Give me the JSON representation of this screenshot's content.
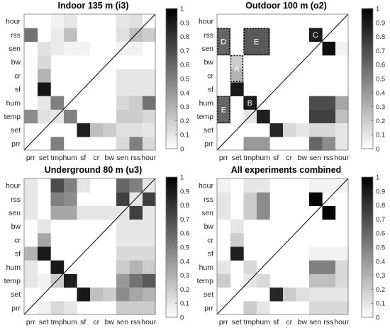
{
  "chart_data": [
    {
      "type": "heatmap",
      "title": "Indoor 135 m (i3)",
      "rows": [
        "hour",
        "rss",
        "sen",
        "bw",
        "cr",
        "sf",
        "hum",
        "temp",
        "set",
        "prr"
      ],
      "cols": [
        "prr",
        "set",
        "tmp",
        "hum",
        "sf",
        "cr",
        "bw",
        "sen",
        "rss",
        "hour"
      ],
      "clim": [
        0,
        1
      ],
      "colorbar_ticks": [
        "0",
        "0.1",
        "0.2",
        "0.3",
        "0.4",
        "0.5",
        "0.6",
        "0.7",
        "0.8",
        "0.9",
        "1"
      ],
      "colormap": [
        "#ffffff",
        "#000000"
      ],
      "values": [
        [
          0,
          0,
          0.05,
          0.1,
          0,
          0,
          0,
          0.1,
          0.12,
          0
        ],
        [
          0.55,
          0,
          0.08,
          0.25,
          0,
          0,
          0,
          0.12,
          0.25,
          0.2
        ],
        [
          0,
          0.12,
          0.08,
          0.05,
          0.05,
          0,
          0,
          0.05,
          0.05,
          0
        ],
        [
          0,
          0.15,
          0,
          0,
          0,
          0,
          0,
          0,
          0,
          0
        ],
        [
          0,
          0.3,
          0,
          0,
          0,
          0,
          0,
          0.1,
          0.1,
          0.1
        ],
        [
          0,
          0.92,
          0,
          0,
          0,
          0,
          0,
          0.1,
          0.1,
          0.1
        ],
        [
          0,
          0.1,
          0.5,
          0,
          0,
          0,
          0,
          0.15,
          0.2,
          0.55
        ],
        [
          0.45,
          0.12,
          0.1,
          0.5,
          0,
          0,
          0,
          0.2,
          0.2,
          0.15
        ],
        [
          0,
          0,
          0,
          0,
          0.88,
          0.25,
          0.2,
          0.12,
          0.12,
          0.1
        ],
        [
          0,
          0,
          0.5,
          0,
          0,
          0,
          0,
          0.15,
          0.5,
          0.15
        ]
      ],
      "diagonal_line": true
    },
    {
      "type": "heatmap",
      "title": "Outdoor 100 m (o2)",
      "rows": [
        "hour",
        "rss",
        "sen",
        "bw",
        "cr",
        "sf",
        "hum",
        "temp",
        "set",
        "prr"
      ],
      "cols": [
        "prr",
        "set",
        "tmp",
        "hum",
        "sf",
        "cr",
        "bw",
        "sen",
        "rss",
        "hour"
      ],
      "clim": [
        0,
        1
      ],
      "colorbar_ticks": [
        "0",
        "0.1",
        "0.2",
        "0.3",
        "0.4",
        "0.5",
        "0.6",
        "0.7",
        "0.8",
        "0.9",
        "1"
      ],
      "colormap": [
        "#ffffff",
        "#000000"
      ],
      "values": [
        [
          0,
          0,
          0,
          0,
          0,
          0,
          0,
          0,
          0,
          0
        ],
        [
          0.6,
          0,
          0.65,
          0.65,
          0,
          0,
          0,
          0.88,
          0,
          0
        ],
        [
          0.6,
          0,
          0.65,
          0.65,
          0,
          0,
          0,
          0,
          0.95,
          0.05
        ],
        [
          0,
          0.2,
          0,
          0,
          0,
          0,
          0,
          0,
          0,
          0
        ],
        [
          0,
          0.3,
          0,
          0,
          0,
          0,
          0,
          0,
          0,
          0
        ],
        [
          0,
          0.9,
          0,
          0,
          0,
          0,
          0,
          0,
          0,
          0
        ],
        [
          0.6,
          0,
          0.88,
          0,
          0,
          0,
          0,
          0.7,
          0.7,
          0.35
        ],
        [
          0.6,
          0,
          0.1,
          0.88,
          0,
          0,
          0,
          0.75,
          0.75,
          0.25
        ],
        [
          0,
          0,
          0,
          0,
          0.85,
          0.15,
          0.1,
          0.15,
          0.15,
          0.1
        ],
        [
          0,
          0,
          0.4,
          0.4,
          0,
          0,
          0,
          0.6,
          0.45,
          0.1
        ]
      ],
      "annotations": [
        "D",
        "E",
        "C",
        "A",
        "E",
        "B"
      ],
      "diagonal_line": true
    },
    {
      "type": "heatmap",
      "title": "Underground 80 m (u3)",
      "rows": [
        "hour",
        "rss",
        "sen",
        "bw",
        "cr",
        "sf",
        "hum",
        "temp",
        "set",
        "prr"
      ],
      "cols": [
        "prr",
        "set",
        "tmp",
        "hum",
        "sf",
        "cr",
        "bw",
        "sen",
        "rss",
        "hour"
      ],
      "clim": [
        0,
        1
      ],
      "colorbar_ticks": [
        "0",
        "0.1",
        "0.2",
        "0.3",
        "0.4",
        "0.5",
        "0.6",
        "0.7",
        "0.8",
        "0.9",
        "1"
      ],
      "colormap": [
        "#ffffff",
        "#000000"
      ],
      "values": [
        [
          0.1,
          0,
          0.7,
          0.5,
          0.1,
          0,
          0,
          0.6,
          0.5,
          0.1
        ],
        [
          0.1,
          0,
          0.5,
          0.45,
          0,
          0,
          0,
          0.75,
          0.1,
          0.75
        ],
        [
          0.1,
          0,
          0.35,
          0.35,
          0.1,
          0.1,
          0.1,
          0.1,
          0.75,
          0.1
        ],
        [
          0,
          0.1,
          0,
          0,
          0,
          0,
          0,
          0.1,
          0.1,
          0.1
        ],
        [
          0,
          0.35,
          0,
          0,
          0,
          0,
          0,
          0.1,
          0.1,
          0.1
        ],
        [
          0.3,
          0.9,
          0,
          0,
          0,
          0,
          0,
          0.15,
          0.15,
          0.15
        ],
        [
          0.1,
          0,
          0.9,
          0,
          0,
          0,
          0,
          0.2,
          0.3,
          0.2
        ],
        [
          0.1,
          0.05,
          0.2,
          0.88,
          0,
          0,
          0,
          0.4,
          0.55,
          0.65
        ],
        [
          0,
          0,
          0,
          0,
          0.9,
          0.25,
          0.2,
          0.45,
          0.35,
          0.3
        ],
        [
          0,
          0.05,
          0.15,
          0.1,
          0,
          0,
          0,
          0.2,
          0.2,
          0.2
        ]
      ],
      "diagonal_line": true
    },
    {
      "type": "heatmap",
      "title": "All experiments combined",
      "rows": [
        "hour",
        "rss",
        "sen",
        "bw",
        "cr",
        "sf",
        "hum",
        "temp",
        "set",
        "prr"
      ],
      "cols": [
        "prr",
        "set",
        "tmp",
        "hum",
        "sf",
        "cr",
        "bw",
        "sen",
        "rss",
        "hour"
      ],
      "clim": [
        0,
        1
      ],
      "colorbar_ticks": [
        "0",
        "0.1",
        "0.2",
        "0.3",
        "0.4",
        "0.5",
        "0.6",
        "0.7",
        "0.8",
        "0.9",
        "1"
      ],
      "colormap": [
        "#ffffff",
        "#000000"
      ],
      "values": [
        [
          0.05,
          0,
          0.1,
          0.1,
          0,
          0,
          0,
          0.05,
          0.05,
          0.05
        ],
        [
          0.1,
          0,
          0.2,
          0.45,
          0,
          0,
          0,
          0.98,
          0,
          0
        ],
        [
          0.1,
          0,
          0.2,
          0.45,
          0,
          0,
          0,
          0,
          0.98,
          0
        ],
        [
          0,
          0.1,
          0,
          0,
          0,
          0,
          0,
          0,
          0,
          0
        ],
        [
          0,
          0.2,
          0,
          0,
          0,
          0,
          0,
          0,
          0,
          0
        ],
        [
          0,
          0.88,
          0,
          0,
          0,
          0,
          0,
          0.05,
          0.05,
          0.05
        ],
        [
          0.1,
          0,
          0.15,
          0,
          0,
          0,
          0,
          0.5,
          0.5,
          0.15
        ],
        [
          0.2,
          0,
          0.1,
          0.15,
          0,
          0,
          0,
          0.25,
          0.25,
          0.15
        ],
        [
          0,
          0,
          0,
          0,
          0.85,
          0.2,
          0.12,
          0.1,
          0.1,
          0.1
        ],
        [
          0,
          0,
          0.2,
          0.1,
          0,
          0,
          0,
          0.15,
          0.15,
          0.15
        ]
      ],
      "diagonal_line": true
    }
  ]
}
